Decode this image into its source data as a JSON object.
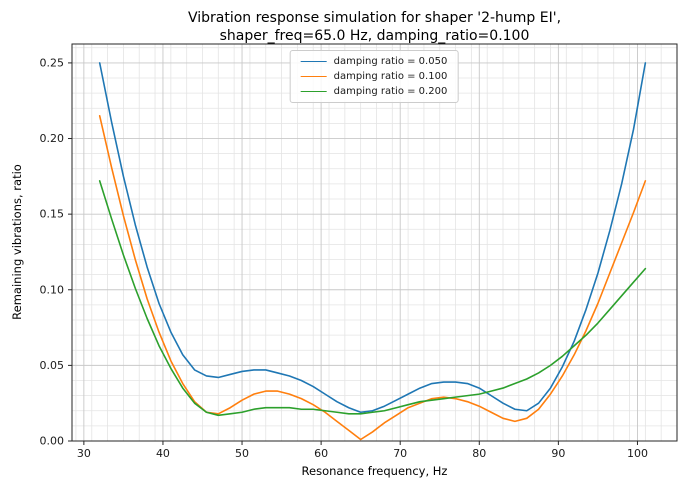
{
  "figure": {
    "title_line1": "Vibration response simulation for shaper '2-hump EI',",
    "title_line2": "shaper_freq=65.0 Hz, damping_ratio=0.100"
  },
  "chart_data": {
    "type": "line",
    "title": "Vibration response simulation for shaper '2-hump EI', shaper_freq=65.0 Hz, damping_ratio=0.100",
    "xlabel": "Resonance frequency, Hz",
    "ylabel": "Remaining vibrations, ratio",
    "xlim": [
      28.5,
      105.0
    ],
    "ylim": [
      0.0,
      0.2625
    ],
    "xticks": [
      30,
      40,
      50,
      60,
      70,
      80,
      90,
      100
    ],
    "yticks": [
      0.0,
      0.05,
      0.1,
      0.15,
      0.2,
      0.25
    ],
    "x_minor_step": 2,
    "y_minor_step": 0.01,
    "grid": true,
    "legend_position": "upper center",
    "x": [
      32,
      33.5,
      35,
      36.5,
      38,
      39.5,
      41,
      42.5,
      44,
      45.5,
      47,
      48.5,
      50,
      51.5,
      53,
      54.5,
      56,
      57.5,
      59,
      60.5,
      62,
      63.5,
      65,
      66.5,
      68,
      69.5,
      71,
      72.5,
      74,
      75.5,
      77,
      78.5,
      80,
      81.5,
      83,
      84.5,
      86,
      87.5,
      89,
      90.5,
      92,
      93.5,
      95,
      96.5,
      98,
      99.5,
      101
    ],
    "series": [
      {
        "name": "damping ratio = 0.050",
        "color": "#1f77b4",
        "values": [
          0.25,
          0.211,
          0.175,
          0.143,
          0.115,
          0.091,
          0.072,
          0.057,
          0.047,
          0.043,
          0.042,
          0.044,
          0.046,
          0.047,
          0.047,
          0.045,
          0.043,
          0.04,
          0.036,
          0.031,
          0.026,
          0.022,
          0.019,
          0.02,
          0.023,
          0.027,
          0.031,
          0.035,
          0.038,
          0.039,
          0.039,
          0.038,
          0.035,
          0.03,
          0.025,
          0.021,
          0.02,
          0.025,
          0.035,
          0.049,
          0.066,
          0.087,
          0.111,
          0.139,
          0.17,
          0.206,
          0.25
        ]
      },
      {
        "name": "damping ratio = 0.100",
        "color": "#ff7f0e",
        "values": [
          0.215,
          0.181,
          0.149,
          0.12,
          0.094,
          0.072,
          0.053,
          0.038,
          0.026,
          0.019,
          0.018,
          0.022,
          0.027,
          0.031,
          0.033,
          0.033,
          0.031,
          0.028,
          0.024,
          0.019,
          0.013,
          0.007,
          0.001,
          0.006,
          0.012,
          0.017,
          0.022,
          0.025,
          0.028,
          0.029,
          0.028,
          0.026,
          0.023,
          0.019,
          0.015,
          0.013,
          0.015,
          0.021,
          0.031,
          0.043,
          0.057,
          0.073,
          0.091,
          0.111,
          0.131,
          0.151,
          0.172
        ]
      },
      {
        "name": "damping ratio = 0.200",
        "color": "#2ca02c",
        "values": [
          0.172,
          0.147,
          0.123,
          0.101,
          0.081,
          0.063,
          0.048,
          0.035,
          0.025,
          0.019,
          0.017,
          0.018,
          0.019,
          0.021,
          0.022,
          0.022,
          0.022,
          0.021,
          0.021,
          0.02,
          0.019,
          0.018,
          0.018,
          0.019,
          0.02,
          0.022,
          0.024,
          0.026,
          0.027,
          0.028,
          0.029,
          0.03,
          0.031,
          0.033,
          0.035,
          0.038,
          0.041,
          0.045,
          0.05,
          0.056,
          0.063,
          0.07,
          0.078,
          0.087,
          0.096,
          0.105,
          0.114
        ]
      }
    ]
  },
  "colors": {
    "grid_major": "#c8c8c8",
    "grid_minor": "#e4e4e4",
    "spine": "#262626",
    "tick_label": "#1a1a1a"
  }
}
